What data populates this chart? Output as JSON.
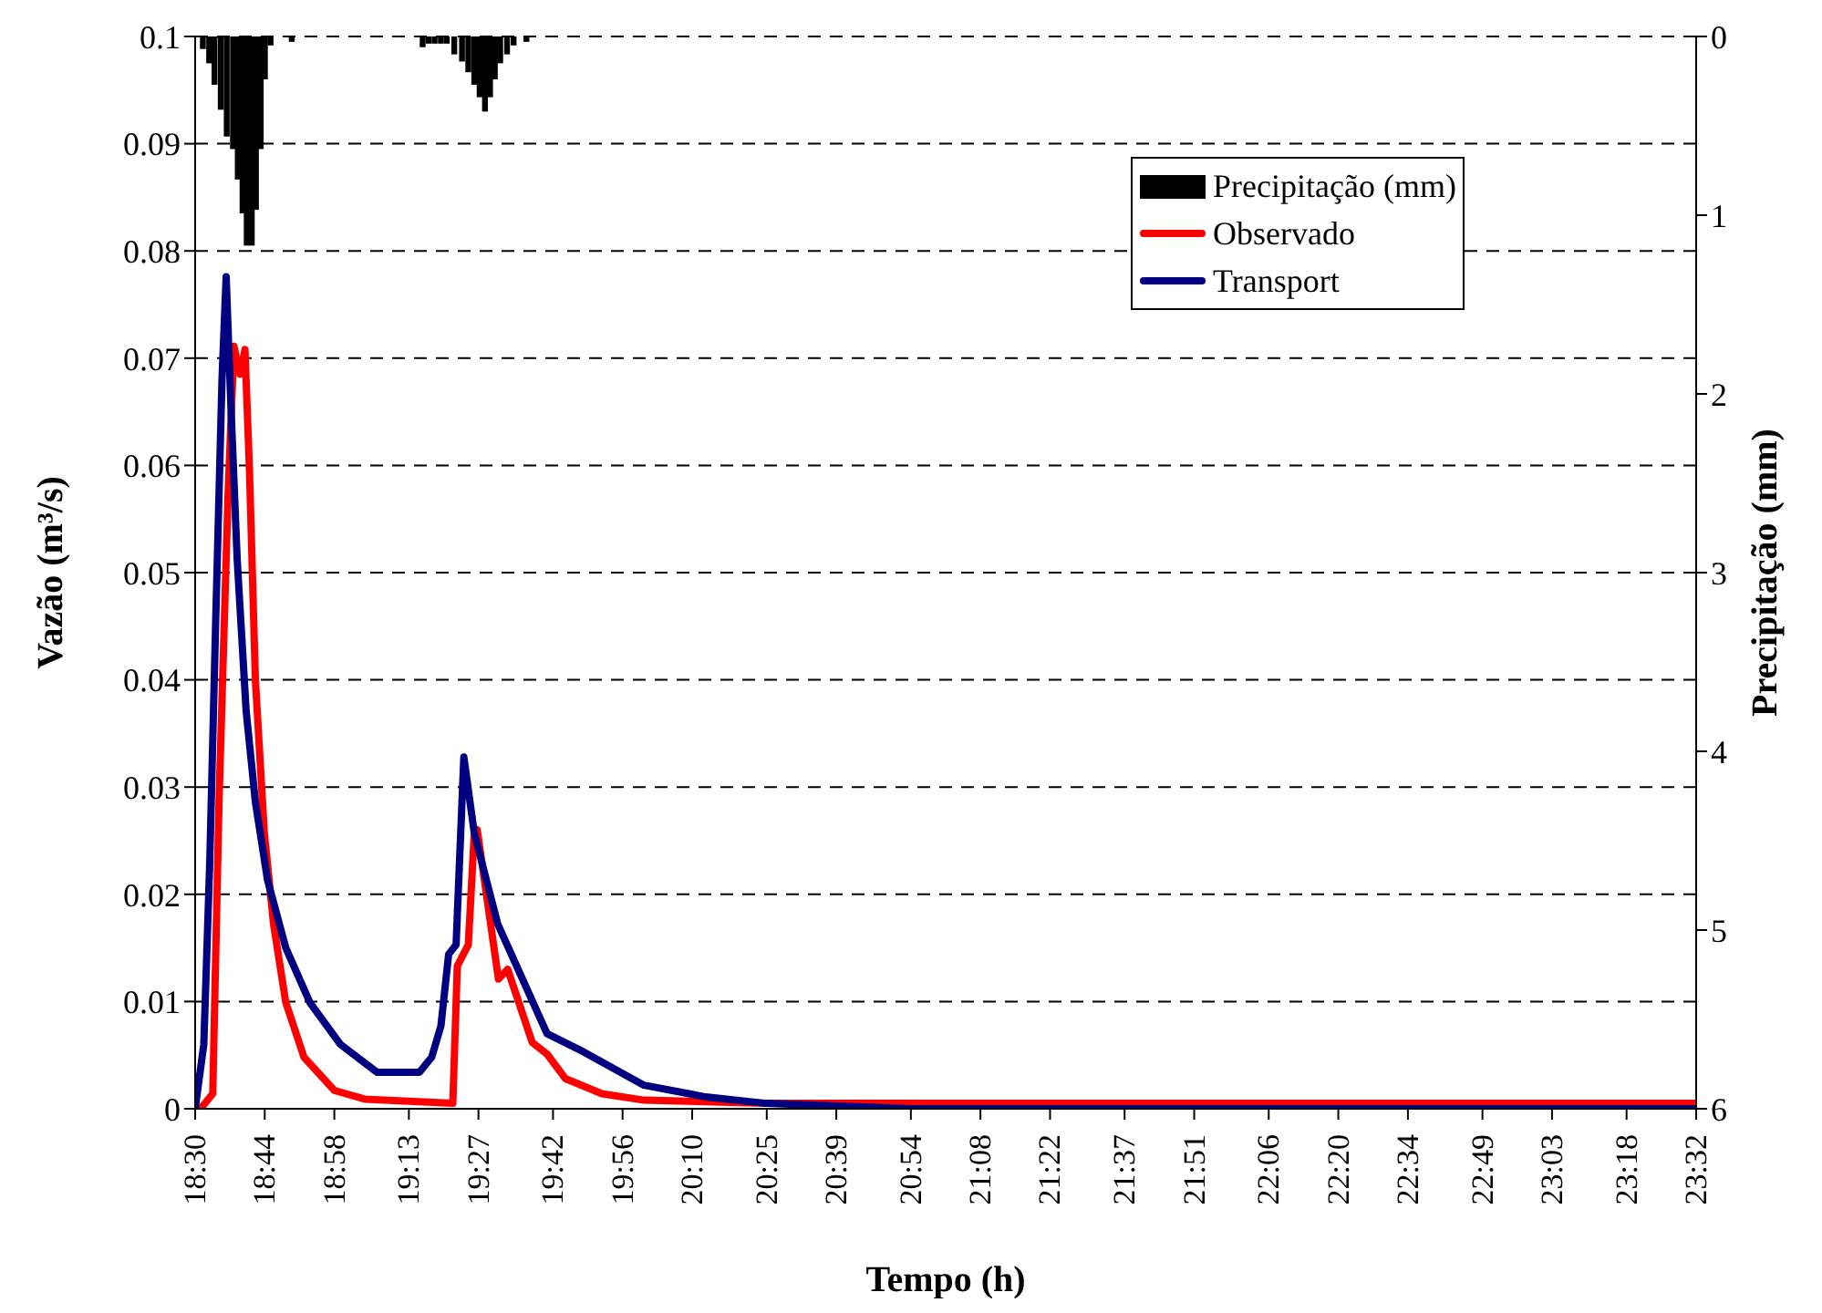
{
  "chart_data": {
    "type": "line",
    "xlabel": "Tempo (h)",
    "ylabel": "Vazão (m³/s)",
    "y2label": "Precipitação (mm)",
    "xlim": [
      18.5,
      23.5333
    ],
    "xticks": [
      {
        "value": 18.5,
        "label": "18:30"
      },
      {
        "value": 18.7333,
        "label": "18:44"
      },
      {
        "value": 18.9667,
        "label": "18:58"
      },
      {
        "value": 19.2167,
        "label": "19:13"
      },
      {
        "value": 19.45,
        "label": "19:27"
      },
      {
        "value": 19.7,
        "label": "19:42"
      },
      {
        "value": 19.9333,
        "label": "19:56"
      },
      {
        "value": 20.1667,
        "label": "20:10"
      },
      {
        "value": 20.4167,
        "label": "20:25"
      },
      {
        "value": 20.65,
        "label": "20:39"
      },
      {
        "value": 20.9,
        "label": "20:54"
      },
      {
        "value": 21.1333,
        "label": "21:08"
      },
      {
        "value": 21.3667,
        "label": "21:22"
      },
      {
        "value": 21.6167,
        "label": "21:37"
      },
      {
        "value": 21.85,
        "label": "21:51"
      },
      {
        "value": 22.1,
        "label": "22:06"
      },
      {
        "value": 22.3333,
        "label": "22:20"
      },
      {
        "value": 22.5667,
        "label": "22:34"
      },
      {
        "value": 22.8167,
        "label": "22:49"
      },
      {
        "value": 23.05,
        "label": "23:03"
      },
      {
        "value": 23.3,
        "label": "23:18"
      },
      {
        "value": 23.5333,
        "label": "23:32"
      }
    ],
    "ylim": [
      0,
      0.1
    ],
    "yticks": [
      0,
      0.01,
      0.02,
      0.03,
      0.04,
      0.05,
      0.06,
      0.07,
      0.08,
      0.09,
      0.1
    ],
    "y2lim": [
      6,
      0
    ],
    "y2ticks": [
      0,
      1,
      2,
      3,
      4,
      5,
      6
    ],
    "grid": "y",
    "legend": "top right",
    "marker": "none",
    "line_style": "solid",
    "series": [
      {
        "name": "Precipitação (mm)",
        "type": "bar",
        "axis": "y2",
        "color": "#000000",
        "x": [
          18.526,
          18.547,
          18.565,
          18.586,
          18.606,
          18.627,
          18.643,
          18.659,
          18.673,
          18.69,
          18.704,
          18.72,
          18.734,
          18.753,
          18.824,
          19.263,
          19.283,
          19.303,
          19.324,
          19.344,
          19.369,
          19.395,
          19.416,
          19.436,
          19.454,
          19.472,
          19.489,
          19.505,
          19.523,
          19.546,
          19.568,
          19.611
        ],
        "values": [
          0.07,
          0.15,
          0.27,
          0.41,
          0.56,
          0.63,
          0.8,
          0.99,
          1.17,
          1.17,
          0.97,
          0.63,
          0.24,
          0.05,
          0.03,
          0.06,
          0.04,
          0.04,
          0.04,
          0.04,
          0.1,
          0.14,
          0.2,
          0.27,
          0.34,
          0.42,
          0.34,
          0.24,
          0.15,
          0.1,
          0.05,
          0.03
        ]
      },
      {
        "name": "Observado",
        "color": "#ff0000",
        "x": [
          18.5,
          18.518,
          18.559,
          18.58,
          18.61,
          18.63,
          18.651,
          18.667,
          18.682,
          18.702,
          18.732,
          18.763,
          18.804,
          18.865,
          18.967,
          19.069,
          19.364,
          19.379,
          19.416,
          19.436,
          19.446,
          19.517,
          19.548,
          19.63,
          19.68,
          19.742,
          19.864,
          20.005,
          20.414,
          23.533
        ],
        "values": [
          0,
          0,
          0.0014,
          0.0286,
          0.057,
          0.0711,
          0.0685,
          0.0708,
          0.0597,
          0.04,
          0.0257,
          0.0172,
          0.0099,
          0.0048,
          0.0017,
          0.0009,
          0.0005,
          0.0133,
          0.0153,
          0.0257,
          0.026,
          0.0121,
          0.013,
          0.0062,
          0.0051,
          0.0028,
          0.0014,
          0.0008,
          0.0005,
          0.0005
        ]
      },
      {
        "name": "Transport",
        "color": "#000080",
        "x": [
          18.5,
          18.529,
          18.549,
          18.569,
          18.59,
          18.604,
          18.62,
          18.641,
          18.671,
          18.702,
          18.743,
          18.804,
          18.885,
          18.987,
          19.11,
          19.252,
          19.293,
          19.324,
          19.35,
          19.375,
          19.401,
          19.436,
          19.515,
          19.68,
          19.803,
          20.005,
          20.213,
          20.414,
          20.904,
          23.533
        ],
        "values": [
          0,
          0.006,
          0.023,
          0.0456,
          0.068,
          0.0776,
          0.0655,
          0.0512,
          0.0371,
          0.0286,
          0.0213,
          0.015,
          0.0099,
          0.006,
          0.0034,
          0.0034,
          0.0048,
          0.0077,
          0.0144,
          0.0153,
          0.0328,
          0.0257,
          0.0172,
          0.007,
          0.0053,
          0.0022,
          0.0011,
          0.0005,
          0,
          0
        ]
      }
    ]
  }
}
